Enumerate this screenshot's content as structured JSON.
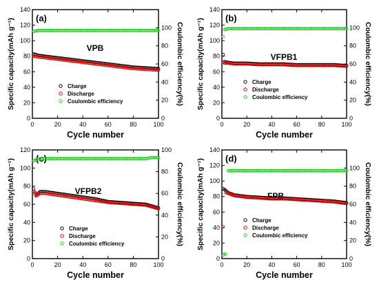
{
  "colors": {
    "charge": "#000000",
    "discharge": "#e00000",
    "ce": "#22cc22"
  },
  "legend": [
    "Charge",
    "Discharge",
    "Coulombic efficiency"
  ],
  "chart_data": [
    {
      "type": "scatter",
      "panel": "(a)",
      "sample": "VPB",
      "xlabel": "Cycle number",
      "ylabel_left": "Specific capacity(mAh g⁻¹)",
      "ylabel_right": "Coulombic efficiency(%)",
      "xlim": [
        0,
        100
      ],
      "ylim_left": [
        0,
        140
      ],
      "ylim_right": [
        0,
        120
      ],
      "xticks": [
        0,
        20,
        40,
        60,
        80,
        100
      ],
      "yticks_left": [
        0,
        20,
        40,
        60,
        80,
        100,
        120,
        140
      ],
      "yticks_right": [
        0,
        20,
        40,
        60,
        80,
        100
      ],
      "series": [
        {
          "name": "Charge",
          "axis": "left",
          "x": [
            1,
            5,
            10,
            20,
            30,
            40,
            50,
            60,
            70,
            80,
            90,
            100
          ],
          "y": [
            83,
            81,
            80,
            78,
            76,
            74,
            72,
            70,
            68,
            66,
            65,
            64
          ]
        },
        {
          "name": "Discharge",
          "axis": "left",
          "x": [
            1,
            5,
            10,
            20,
            30,
            40,
            50,
            60,
            70,
            80,
            90,
            100
          ],
          "y": [
            80,
            79,
            78,
            76,
            74,
            72,
            70,
            68,
            66,
            64,
            63,
            62
          ]
        },
        {
          "name": "Coulombic efficiency",
          "axis": "right",
          "x": [
            1,
            5,
            10,
            20,
            30,
            40,
            50,
            60,
            70,
            80,
            90,
            100
          ],
          "y": [
            96,
            97,
            97,
            97,
            97,
            97,
            97,
            97,
            97,
            97,
            97,
            97
          ]
        }
      ]
    },
    {
      "type": "scatter",
      "panel": "(b)",
      "sample": "VFPB1",
      "xlabel": "Cycle number",
      "ylabel_left": "Specific capacity(mAh g⁻¹)",
      "ylabel_right": "Coulombic efficiency(%)",
      "xlim": [
        0,
        100
      ],
      "ylim_left": [
        0,
        140
      ],
      "ylim_right": [
        0,
        120
      ],
      "xticks": [
        0,
        20,
        40,
        60,
        80,
        100
      ],
      "yticks_left": [
        0,
        20,
        40,
        60,
        80,
        100,
        120,
        140
      ],
      "yticks_right": [
        0,
        20,
        40,
        60,
        80,
        100
      ],
      "series": [
        {
          "name": "Charge",
          "axis": "left",
          "x": [
            1,
            2,
            5,
            10,
            20,
            30,
            40,
            50,
            60,
            70,
            80,
            90,
            100
          ],
          "y": [
            82,
            73,
            72,
            71,
            71,
            70,
            70,
            70,
            69,
            69,
            69,
            69,
            68
          ]
        },
        {
          "name": "Discharge",
          "axis": "left",
          "x": [
            1,
            2,
            5,
            10,
            20,
            30,
            40,
            50,
            60,
            70,
            80,
            90,
            100
          ],
          "y": [
            72,
            71,
            71,
            70,
            70,
            69,
            69,
            69,
            68,
            68,
            68,
            68,
            67
          ]
        },
        {
          "name": "Coulombic efficiency",
          "axis": "right",
          "x": [
            1,
            2,
            5,
            10,
            20,
            30,
            40,
            50,
            60,
            70,
            80,
            90,
            100
          ],
          "y": [
            90,
            98,
            99,
            99,
            99,
            99,
            99,
            99,
            99,
            99,
            99,
            99,
            99
          ]
        }
      ]
    },
    {
      "type": "scatter",
      "panel": "(c)",
      "sample": "VFPB2",
      "xlabel": "Cycle number",
      "ylabel_left": "Specific capacity(mAh g⁻¹)",
      "ylabel_right": "Coulombic efficiency(%)",
      "xlim": [
        0,
        100
      ],
      "ylim_left": [
        0,
        120
      ],
      "ylim_right": [
        0,
        100
      ],
      "xticks": [
        0,
        20,
        40,
        60,
        80,
        100
      ],
      "yticks_left": [
        0,
        20,
        40,
        60,
        80,
        100,
        120
      ],
      "yticks_right": [
        0,
        20,
        40,
        60,
        80,
        100
      ],
      "series": [
        {
          "name": "Charge",
          "axis": "left",
          "x": [
            1,
            3,
            6,
            10,
            20,
            30,
            40,
            50,
            60,
            70,
            80,
            90,
            95,
            100
          ],
          "y": [
            77,
            70,
            74,
            74,
            72,
            70,
            68,
            66,
            63,
            62,
            61,
            60,
            58,
            56
          ]
        },
        {
          "name": "Discharge",
          "axis": "left",
          "x": [
            1,
            3,
            6,
            10,
            20,
            30,
            40,
            50,
            60,
            70,
            80,
            90,
            95,
            100
          ],
          "y": [
            74,
            69,
            72,
            72,
            70,
            68,
            66,
            64,
            62,
            61,
            60,
            59,
            57,
            55
          ]
        },
        {
          "name": "Coulombic efficiency",
          "axis": "right",
          "x": [
            1,
            3,
            6,
            10,
            20,
            30,
            40,
            50,
            60,
            70,
            80,
            90,
            95,
            100
          ],
          "y": [
            90,
            91,
            92,
            92,
            92,
            92,
            92,
            92,
            92,
            92,
            92,
            92,
            93,
            93
          ]
        }
      ]
    },
    {
      "type": "scatter",
      "panel": "(d)",
      "sample": "FPB",
      "xlabel": "Cycle number",
      "ylabel_left": "Specific capacity(mAh g⁻¹)",
      "ylabel_right": "Coulombic efficiency(%)",
      "xlim": [
        0,
        100
      ],
      "ylim_left": [
        0,
        140
      ],
      "ylim_right": [
        0,
        120
      ],
      "xticks": [
        0,
        20,
        40,
        60,
        80,
        100
      ],
      "yticks_left": [
        0,
        20,
        40,
        60,
        80,
        100,
        120,
        140
      ],
      "yticks_right": [
        0,
        20,
        40,
        60,
        80,
        100
      ],
      "series": [
        {
          "name": "Charge",
          "axis": "left",
          "x": [
            1,
            3,
            5,
            10,
            20,
            30,
            40,
            50,
            60,
            70,
            80,
            90,
            100
          ],
          "y": [
            90,
            88,
            85,
            82,
            80,
            79,
            78,
            78,
            77,
            76,
            75,
            74,
            72
          ]
        },
        {
          "name": "Discharge",
          "axis": "left",
          "x": [
            1,
            3,
            5,
            10,
            20,
            30,
            40,
            50,
            60,
            70,
            80,
            90,
            100
          ],
          "y": [
            41,
            85,
            84,
            81,
            79,
            78,
            77,
            77,
            76,
            75,
            74,
            73,
            71
          ]
        },
        {
          "name": "Coulombic efficiency",
          "axis": "right",
          "x": [
            1,
            2,
            3,
            5,
            10,
            20,
            30,
            40,
            50,
            60,
            70,
            80,
            90,
            100
          ],
          "y": [
            4,
            5,
            5,
            97,
            97,
            97,
            97,
            97,
            97,
            97,
            97,
            97,
            97,
            97
          ]
        }
      ]
    }
  ]
}
